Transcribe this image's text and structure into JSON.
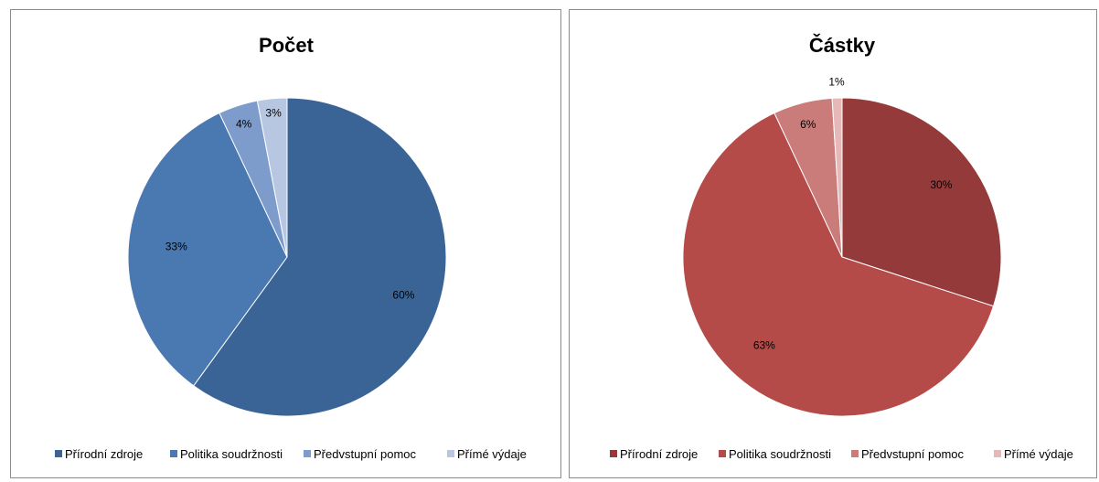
{
  "chart_data": [
    {
      "type": "pie",
      "title": "Počet",
      "categories": [
        "Přírodní zdroje",
        "Politika soudržnosti",
        "Předvstupní pomoc",
        "Přímé výdaje"
      ],
      "values": [
        60,
        33,
        4,
        3
      ],
      "labels": [
        "60%",
        "33%",
        "4%",
        "3%"
      ],
      "colors": [
        "#3b6496",
        "#4a78b0",
        "#7d9ccb",
        "#b7c7e2"
      ],
      "legend": "bottom"
    },
    {
      "type": "pie",
      "title": "Částky",
      "categories": [
        "Přírodní zdroje",
        "Politika soudržnosti",
        "Předvstupní pomoc",
        "Přímé výdaje"
      ],
      "values": [
        30,
        63,
        6,
        1
      ],
      "labels": [
        "30%",
        "63%",
        "6%",
        "1%"
      ],
      "colors": [
        "#943a3a",
        "#b54b49",
        "#c97c7a",
        "#e6b9b8"
      ],
      "legend": "bottom"
    }
  ]
}
